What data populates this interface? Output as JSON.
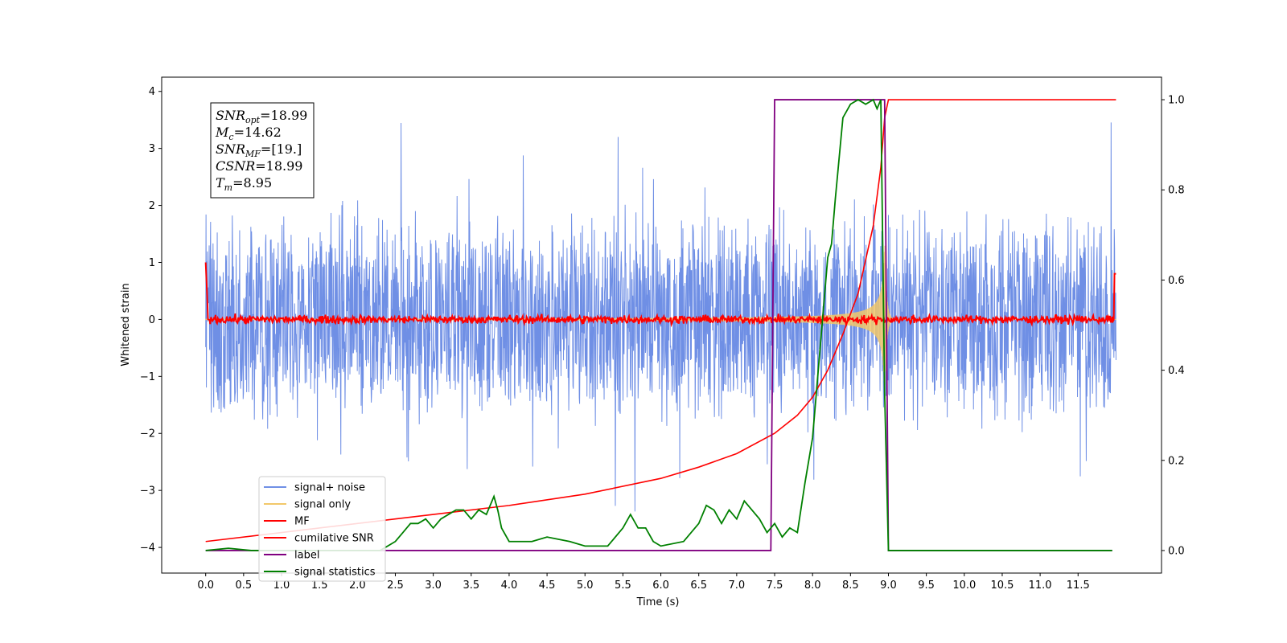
{
  "chart_data": {
    "type": "line",
    "xlabel": "Time (s)",
    "ylabel_left": "Whitened strain",
    "ylim_left": [
      -4.45,
      4.25
    ],
    "ylim_right": [
      -0.05,
      1.05
    ],
    "xlim": [
      -0.58,
      12.6
    ],
    "x_ticks": [
      0.0,
      0.5,
      1.0,
      1.5,
      2.0,
      2.5,
      3.0,
      3.5,
      4.0,
      4.5,
      5.0,
      5.5,
      6.0,
      6.5,
      7.0,
      7.5,
      8.0,
      8.5,
      9.0,
      9.5,
      10.0,
      10.5,
      11.0,
      11.5
    ],
    "x_tick_labels": [
      "0.0",
      "0.5",
      "1.0",
      "1.5",
      "2.0",
      "2.5",
      "3.0",
      "3.5",
      "4.0",
      "4.5",
      "5.0",
      "5.5",
      "6.0",
      "6.5",
      "7.0",
      "7.5",
      "8.0",
      "8.5",
      "9.0",
      "9.5",
      "10.0",
      "10.5",
      "11.0",
      "11.5"
    ],
    "y_ticks_left": [
      4,
      3,
      2,
      1,
      0,
      -1,
      -2,
      -3,
      -4
    ],
    "y_tick_labels_left": [
      "4",
      "3",
      "2",
      "1",
      "0",
      "−1",
      "−2",
      "−3",
      "−4"
    ],
    "y_ticks_right": [
      1.0,
      0.8,
      0.6,
      0.4,
      0.2,
      0.0
    ],
    "y_tick_labels_right": [
      "1.0",
      "0.8",
      "0.6",
      "0.4",
      "0.2",
      "0.0"
    ],
    "annotation": [
      {
        "sym": "SNR",
        "sub": "opt",
        "val": "=18.99"
      },
      {
        "sym": "M",
        "sub": "c",
        "val": "=14.62"
      },
      {
        "sym": "SNR",
        "sub": "MF",
        "val": "=[19.]"
      },
      {
        "sym": "CSNR",
        "sub": "",
        "val": "=18.99"
      },
      {
        "sym": "T",
        "sub": "m",
        "val": "=8.95"
      }
    ],
    "legend_position": "lower-left",
    "series": [
      {
        "name": "signal+ noise",
        "color": "#6f8fe5",
        "axis": "left",
        "kind": "noise",
        "x_range": [
          0,
          12
        ],
        "envelope": 1.5,
        "peak": 3.6
      },
      {
        "name": "signal only",
        "color": "#f2c86a",
        "axis": "left",
        "kind": "chirp",
        "x_range": [
          0,
          12
        ],
        "merger_time": 8.95
      },
      {
        "name": "MF",
        "color": "#ff0000",
        "axis": "left",
        "kind": "mf",
        "x_range": [
          0,
          12
        ],
        "level": 0.0
      },
      {
        "name": "cumilative SNR",
        "color": "#ff0000",
        "axis": "right",
        "x": [
          0.0,
          1.0,
          2.0,
          3.0,
          4.0,
          5.0,
          6.0,
          6.5,
          7.0,
          7.5,
          7.8,
          8.0,
          8.2,
          8.4,
          8.6,
          8.8,
          8.9,
          8.95,
          9.0,
          12.0
        ],
        "y": [
          0.02,
          0.04,
          0.06,
          0.08,
          0.1,
          0.125,
          0.16,
          0.185,
          0.215,
          0.26,
          0.3,
          0.34,
          0.4,
          0.48,
          0.57,
          0.72,
          0.85,
          0.96,
          1.0,
          1.0
        ]
      },
      {
        "name": "label",
        "color": "#800080",
        "axis": "right",
        "x": [
          0.0,
          7.45,
          7.5,
          8.95,
          9.0,
          11.95
        ],
        "y": [
          0.0,
          0.0,
          1.0,
          1.0,
          0.0,
          0.0
        ]
      },
      {
        "name": "signal statistics",
        "color": "#008000",
        "axis": "right",
        "x": [
          0.0,
          0.3,
          0.6,
          1.0,
          1.5,
          2.0,
          2.3,
          2.5,
          2.6,
          2.7,
          2.8,
          2.9,
          3.0,
          3.1,
          3.2,
          3.3,
          3.4,
          3.5,
          3.6,
          3.7,
          3.8,
          3.85,
          3.9,
          4.0,
          4.3,
          4.5,
          4.8,
          5.0,
          5.3,
          5.5,
          5.6,
          5.7,
          5.8,
          5.9,
          6.0,
          6.3,
          6.5,
          6.6,
          6.7,
          6.8,
          6.9,
          7.0,
          7.1,
          7.2,
          7.3,
          7.4,
          7.5,
          7.6,
          7.7,
          7.8,
          7.9,
          8.0,
          8.1,
          8.15,
          8.2,
          8.25,
          8.3,
          8.4,
          8.5,
          8.6,
          8.7,
          8.8,
          8.85,
          8.9,
          8.95,
          9.0,
          9.5,
          10.0,
          11.0,
          11.95
        ],
        "y": [
          0.0,
          0.005,
          0.0,
          0.0,
          0.0,
          0.0,
          0.0,
          0.02,
          0.04,
          0.06,
          0.06,
          0.07,
          0.05,
          0.07,
          0.08,
          0.09,
          0.09,
          0.07,
          0.09,
          0.08,
          0.12,
          0.09,
          0.05,
          0.02,
          0.02,
          0.03,
          0.02,
          0.01,
          0.01,
          0.05,
          0.08,
          0.05,
          0.05,
          0.02,
          0.01,
          0.02,
          0.06,
          0.1,
          0.09,
          0.06,
          0.09,
          0.07,
          0.11,
          0.09,
          0.07,
          0.04,
          0.06,
          0.03,
          0.05,
          0.04,
          0.15,
          0.25,
          0.45,
          0.55,
          0.65,
          0.68,
          0.78,
          0.96,
          0.99,
          1.0,
          0.99,
          1.0,
          0.98,
          1.0,
          0.35,
          0.0,
          0.0,
          0.0,
          0.0,
          0.0
        ]
      }
    ]
  }
}
